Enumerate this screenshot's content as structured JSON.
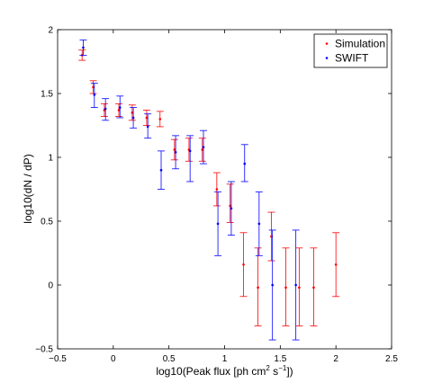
{
  "chart_data": {
    "type": "scatter",
    "xlabel_main": "log10(Peak flux [ph cm",
    "xlabel_sup1": "2",
    "xlabel_mid": " s",
    "xlabel_sup2": "−1",
    "xlabel_end": "])",
    "ylabel": "log10(dN / dP)",
    "xlim": [
      -0.5,
      2.5
    ],
    "ylim": [
      -0.5,
      2
    ],
    "x_ticks": [
      {
        "v": -0.5,
        "label": "−0.5"
      },
      {
        "v": 0,
        "label": "0"
      },
      {
        "v": 0.5,
        "label": "0.5"
      },
      {
        "v": 1,
        "label": "1"
      },
      {
        "v": 1.5,
        "label": "1.5"
      },
      {
        "v": 2,
        "label": "2"
      },
      {
        "v": 2.5,
        "label": "2.5"
      }
    ],
    "y_ticks": [
      {
        "v": -0.5,
        "label": "−0.5"
      },
      {
        "v": 0,
        "label": "0"
      },
      {
        "v": 0.5,
        "label": "0.5"
      },
      {
        "v": 1,
        "label": "1"
      },
      {
        "v": 1.5,
        "label": "1.5"
      },
      {
        "v": 2,
        "label": "2"
      }
    ],
    "grid": false,
    "legend_position": "top-right",
    "series": [
      {
        "name": "Simulation",
        "color": "#ff0000",
        "points": [
          {
            "x": -0.28,
            "y": 1.8,
            "lo": 1.76,
            "hi": 1.84
          },
          {
            "x": -0.18,
            "y": 1.55,
            "lo": 1.5,
            "hi": 1.6
          },
          {
            "x": -0.08,
            "y": 1.37,
            "lo": 1.32,
            "hi": 1.42
          },
          {
            "x": 0.05,
            "y": 1.37,
            "lo": 1.32,
            "hi": 1.42
          },
          {
            "x": 0.17,
            "y": 1.35,
            "lo": 1.29,
            "hi": 1.41
          },
          {
            "x": 0.3,
            "y": 1.31,
            "lo": 1.25,
            "hi": 1.37
          },
          {
            "x": 0.42,
            "y": 1.3,
            "lo": 1.24,
            "hi": 1.36
          },
          {
            "x": 0.55,
            "y": 1.06,
            "lo": 0.98,
            "hi": 1.14
          },
          {
            "x": 0.68,
            "y": 1.06,
            "lo": 0.97,
            "hi": 1.15
          },
          {
            "x": 0.8,
            "y": 1.06,
            "lo": 0.97,
            "hi": 1.15
          },
          {
            "x": 0.93,
            "y": 0.75,
            "lo": 0.62,
            "hi": 0.88
          },
          {
            "x": 1.05,
            "y": 0.62,
            "lo": 0.49,
            "hi": 0.79
          },
          {
            "x": 1.17,
            "y": 0.16,
            "lo": -0.09,
            "hi": 0.41
          },
          {
            "x": 1.3,
            "y": -0.02,
            "lo": -0.32,
            "hi": 0.29
          },
          {
            "x": 1.42,
            "y": 0.38,
            "lo": 0.19,
            "hi": 0.57
          },
          {
            "x": 1.55,
            "y": -0.02,
            "lo": -0.32,
            "hi": 0.29
          },
          {
            "x": 1.67,
            "y": -0.02,
            "lo": -0.32,
            "hi": 0.29
          },
          {
            "x": 1.8,
            "y": -0.02,
            "lo": -0.32,
            "hi": 0.29
          },
          {
            "x": 2.0,
            "y": 0.16,
            "lo": -0.09,
            "hi": 0.41
          }
        ]
      },
      {
        "name": "SWIFT",
        "color": "#0000ff",
        "points": [
          {
            "x": -0.27,
            "y": 1.86,
            "lo": 1.8,
            "hi": 1.92
          },
          {
            "x": -0.17,
            "y": 1.49,
            "lo": 1.39,
            "hi": 1.58
          },
          {
            "x": -0.07,
            "y": 1.38,
            "lo": 1.29,
            "hi": 1.46
          },
          {
            "x": 0.06,
            "y": 1.39,
            "lo": 1.31,
            "hi": 1.48
          },
          {
            "x": 0.18,
            "y": 1.31,
            "lo": 1.23,
            "hi": 1.39
          },
          {
            "x": 0.31,
            "y": 1.24,
            "lo": 1.15,
            "hi": 1.34
          },
          {
            "x": 0.43,
            "y": 0.9,
            "lo": 0.75,
            "hi": 1.05
          },
          {
            "x": 0.56,
            "y": 1.04,
            "lo": 0.91,
            "hi": 1.17
          },
          {
            "x": 0.69,
            "y": 1.05,
            "lo": 0.81,
            "hi": 1.17
          },
          {
            "x": 0.81,
            "y": 1.08,
            "lo": 0.95,
            "hi": 1.21
          },
          {
            "x": 0.94,
            "y": 0.48,
            "lo": 0.23,
            "hi": 0.73
          },
          {
            "x": 1.06,
            "y": 0.6,
            "lo": 0.39,
            "hi": 0.81
          },
          {
            "x": 1.18,
            "y": 0.95,
            "lo": 0.81,
            "hi": 1.1
          },
          {
            "x": 1.31,
            "y": 0.48,
            "lo": 0.23,
            "hi": 0.73
          },
          {
            "x": 1.43,
            "y": 0.0,
            "lo": -0.43,
            "hi": 0.43
          },
          {
            "x": 1.64,
            "y": 0.0,
            "lo": -0.43,
            "hi": 0.43
          }
        ]
      }
    ]
  }
}
